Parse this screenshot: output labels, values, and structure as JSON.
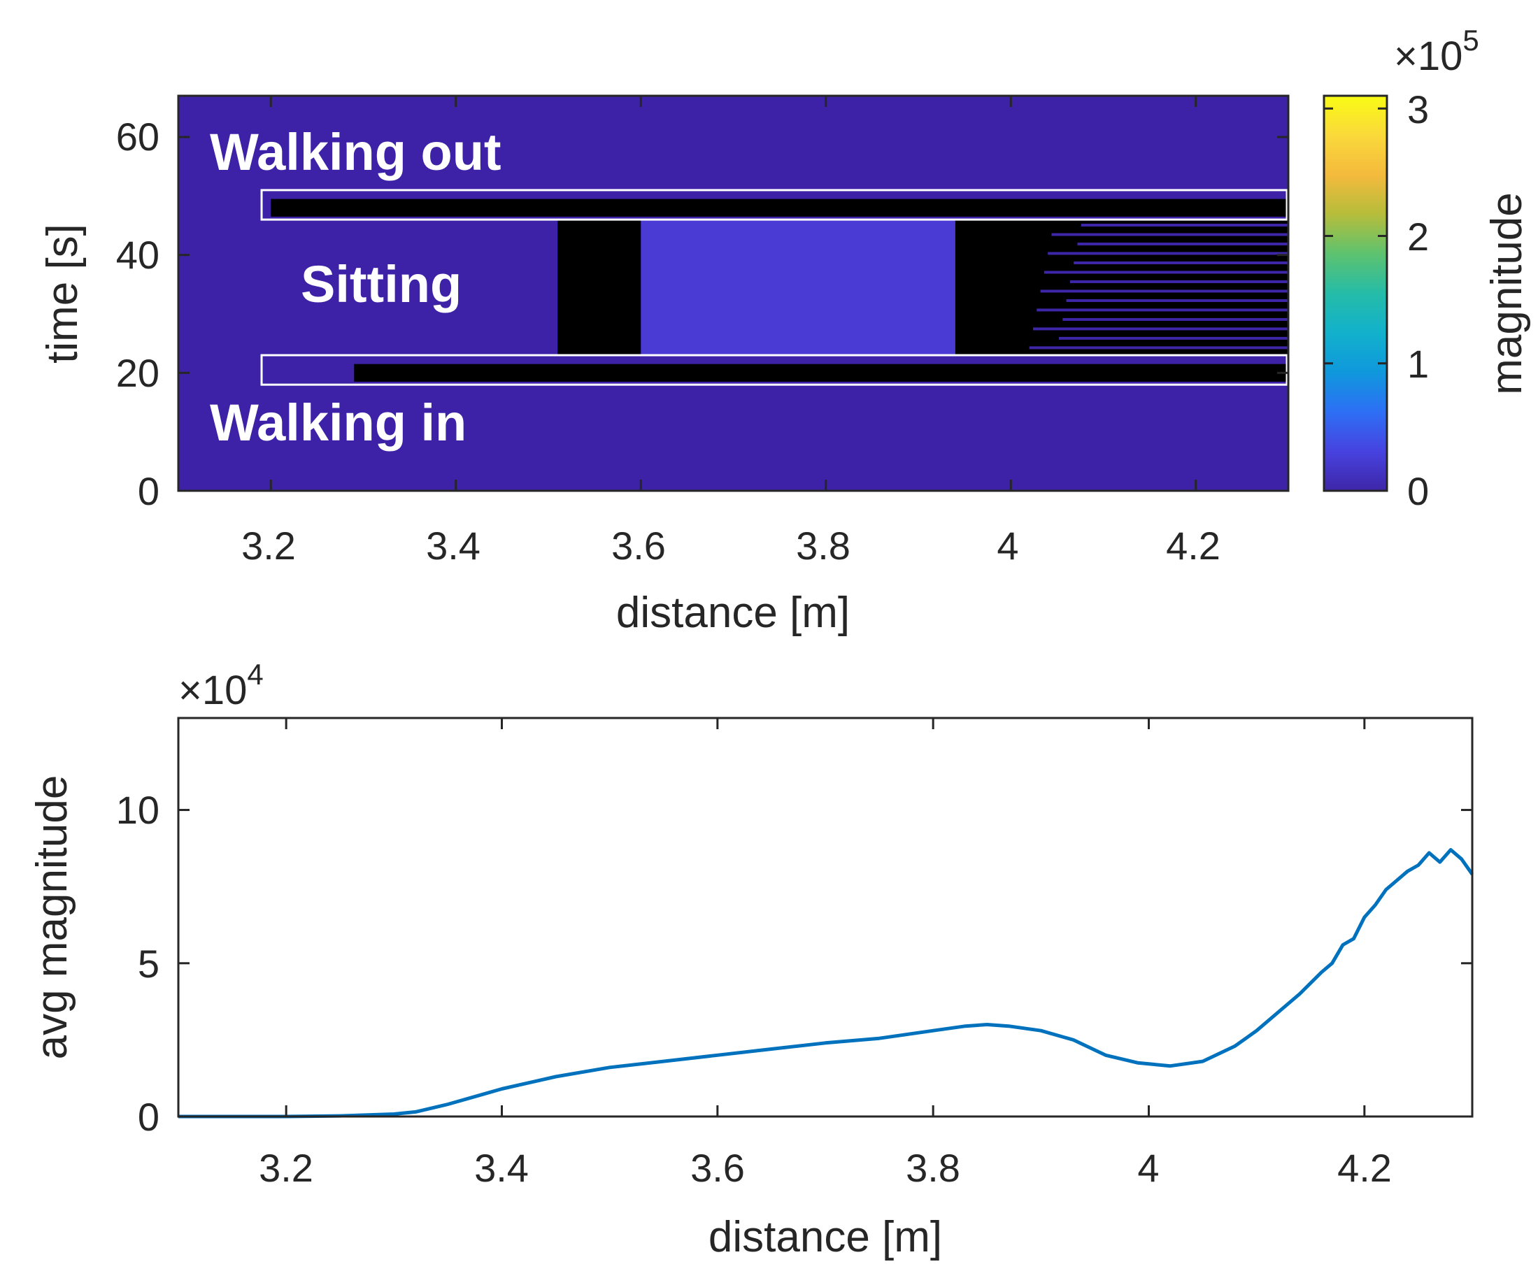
{
  "chart_data": [
    {
      "type": "heatmap",
      "xlabel": "distance [m]",
      "ylabel": "time [s]",
      "xlim": [
        3.1,
        4.3
      ],
      "ylim": [
        0,
        67
      ],
      "xticks": [
        3.2,
        3.4,
        3.6,
        3.8,
        4.0,
        4.2
      ],
      "xtick_labels": [
        "3.2",
        "3.4",
        "3.6",
        "3.8",
        "4",
        "4.2"
      ],
      "yticks": [
        0,
        20,
        40,
        60
      ],
      "ytick_labels": [
        "0",
        "20",
        "40",
        "60"
      ],
      "background_color": "#3d22a8",
      "colorbar": {
        "label": "magnitude",
        "range": [
          0,
          310000
        ],
        "ticks": [
          0,
          1,
          2,
          3
        ],
        "tick_labels": [
          "0",
          "1",
          "2",
          "3"
        ],
        "multiplier_base": "×10",
        "multiplier_exp": "5",
        "colormap": [
          "#3e26a8",
          "#4743e0",
          "#2d6ff5",
          "#0f98dc",
          "#12b1cc",
          "#25bca8",
          "#5dc26f",
          "#b6bd3b",
          "#f4ba3d",
          "#fad93a",
          "#f9fb15"
        ]
      },
      "annotations": [
        {
          "text": "Walking out",
          "x": 3.16,
          "y": 57
        },
        {
          "text": "Sitting",
          "x": 3.27,
          "y": 34.5
        },
        {
          "text": "Walking in",
          "x": 3.16,
          "y": 11.5
        }
      ],
      "regions": [
        {
          "label": "walking-out",
          "x": [
            3.19,
            4.3
          ],
          "y": [
            46,
            51
          ]
        },
        {
          "label": "walking-in",
          "x": [
            3.19,
            4.3
          ],
          "y": [
            18,
            23
          ]
        }
      ],
      "dark_bands": [
        {
          "x": [
            3.2,
            4.3
          ],
          "y": [
            46.5,
            49.5
          ]
        },
        {
          "x": [
            3.29,
            4.3
          ],
          "y": [
            18.5,
            21.5
          ]
        },
        {
          "x": [
            3.51,
            3.6
          ],
          "y": [
            23,
            46
          ]
        },
        {
          "x": [
            3.94,
            4.3
          ],
          "y": [
            23,
            46
          ]
        }
      ],
      "bright_region": {
        "x": [
          4.07,
          4.3
        ],
        "y": [
          25,
          45
        ],
        "color": "#0f7bdf"
      }
    },
    {
      "type": "line",
      "xlabel": "distance [m]",
      "ylabel": "avg magnitude",
      "xlim": [
        3.1,
        4.3
      ],
      "ylim": [
        0,
        130000
      ],
      "xticks": [
        3.2,
        3.4,
        3.6,
        3.8,
        4.0,
        4.2
      ],
      "xtick_labels": [
        "3.2",
        "3.4",
        "3.6",
        "3.8",
        "4",
        "4.2"
      ],
      "yticks": [
        0,
        50000,
        100000
      ],
      "ytick_labels": [
        "0",
        "5",
        "10"
      ],
      "multiplier_base": "×10",
      "multiplier_exp": "4",
      "line_color": "#0072bd",
      "x": [
        3.1,
        3.15,
        3.2,
        3.25,
        3.3,
        3.32,
        3.35,
        3.38,
        3.4,
        3.45,
        3.5,
        3.55,
        3.6,
        3.65,
        3.7,
        3.75,
        3.8,
        3.83,
        3.85,
        3.87,
        3.9,
        3.93,
        3.96,
        3.99,
        4.02,
        4.05,
        4.08,
        4.1,
        4.12,
        4.14,
        4.16,
        4.17,
        4.18,
        4.19,
        4.2,
        4.21,
        4.22,
        4.23,
        4.24,
        4.25,
        4.26,
        4.27,
        4.28,
        4.29,
        4.3
      ],
      "y": [
        0,
        0,
        0,
        200,
        800,
        1500,
        4000,
        7000,
        9000,
        13000,
        16000,
        18000,
        20000,
        22000,
        24000,
        25500,
        28000,
        29500,
        30000,
        29500,
        28000,
        25000,
        20000,
        17500,
        16500,
        18000,
        23000,
        28000,
        34000,
        40000,
        47000,
        50000,
        56000,
        58000,
        65000,
        69000,
        74000,
        77000,
        80000,
        82000,
        86000,
        83000,
        87000,
        84000,
        79000
      ]
    }
  ]
}
